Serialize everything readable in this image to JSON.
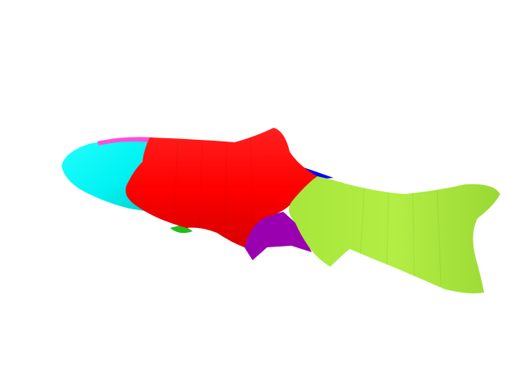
{
  "scene": {
    "subject": "fish-3d-mesh",
    "background": "#ffffff",
    "segments": [
      {
        "name": "head",
        "color": "#00ffff"
      },
      {
        "name": "head-top-edge",
        "color": "#ff4fd8"
      },
      {
        "name": "body",
        "color": "#ff0000"
      },
      {
        "name": "tail",
        "color": "#a6e83a"
      },
      {
        "name": "belly",
        "color": "#9a00b0"
      },
      {
        "name": "back-strip",
        "color": "#0000ff"
      },
      {
        "name": "pectoral-fin",
        "color": "#22bb22"
      }
    ]
  }
}
